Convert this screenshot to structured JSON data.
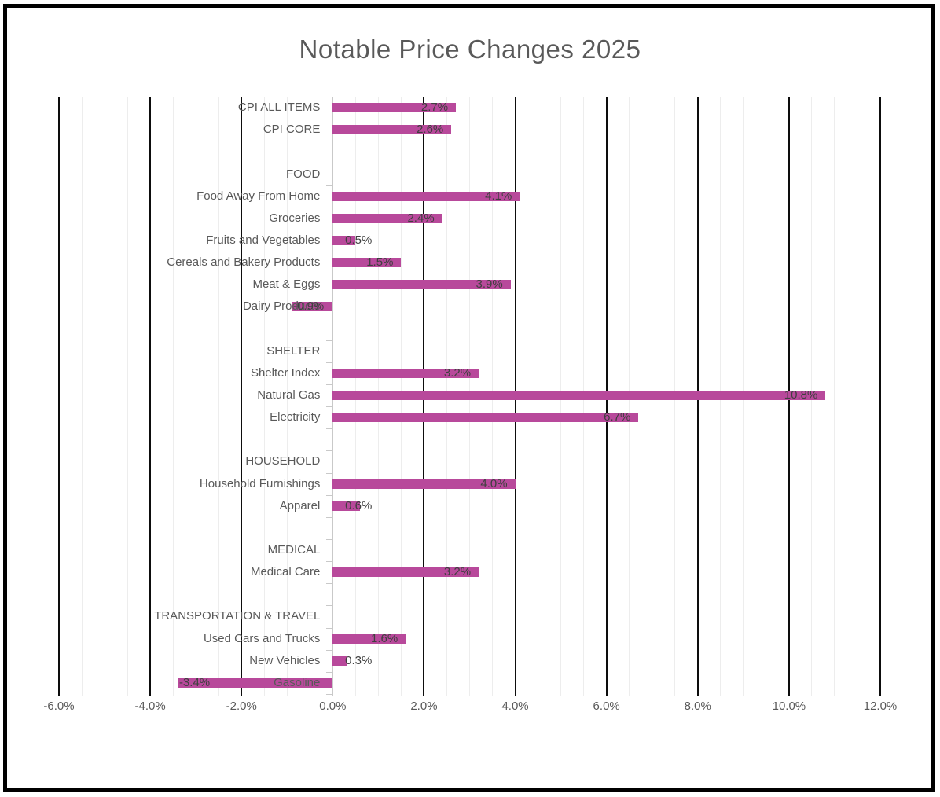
{
  "chart_data": {
    "type": "bar",
    "orientation": "horizontal",
    "title": "Notable Price Changes 2025",
    "xlabel": "",
    "ylabel": "",
    "xlim": [
      -6,
      12
    ],
    "x_major_step": 2,
    "x_minor_step": 0.5,
    "grid": "major-black-with-light-minor",
    "legend": "none",
    "x_tick_values": [
      -6,
      -4,
      -2,
      0,
      2,
      4,
      6,
      8,
      10,
      12
    ],
    "x_tick_labels": [
      "-6.0%",
      "-4.0%",
      "-2.0%",
      "0.0%",
      "2.0%",
      "4.0%",
      "6.0%",
      "8.0%",
      "10.0%",
      "12.0%"
    ],
    "categories": [
      "CPI ALL ITEMS",
      "CPI CORE",
      "",
      "FOOD",
      "Food Away From Home",
      "Groceries",
      "Fruits and Vegetables",
      "Cereals and Bakery Products",
      "Meat & Eggs",
      "Dairy Products",
      "",
      "SHELTER",
      "Shelter Index",
      "Natural Gas",
      "Electricity",
      "",
      "HOUSEHOLD",
      "Household Furnishings",
      "Apparel",
      "",
      "MEDICAL",
      "Medical Care",
      "",
      "TRANSPORTATION & TRAVEL",
      "Used Cars and Trucks",
      "New Vehicles",
      "Gasoline"
    ],
    "values": [
      2.7,
      2.6,
      null,
      null,
      4.1,
      2.4,
      0.5,
      1.5,
      3.9,
      -0.9,
      null,
      null,
      3.2,
      10.8,
      6.7,
      null,
      null,
      4.0,
      0.6,
      null,
      null,
      3.2,
      null,
      null,
      1.6,
      0.3,
      -3.4
    ],
    "data_labels": [
      "2.7%",
      "2.6%",
      null,
      null,
      "4.1%",
      "2.4%",
      "0.5%",
      "1.5%",
      "3.9%",
      "-0.9%",
      null,
      null,
      "3.2%",
      "10.8%",
      "6.7%",
      null,
      null,
      "4.0%",
      "0.6%",
      null,
      null,
      "3.2%",
      null,
      null,
      "1.6%",
      "0.3%",
      "-3.4%"
    ],
    "colors": {
      "bar": "#b8499b",
      "title_text": "#595959",
      "category_text": "#595959",
      "data_label_text": "#3f3f3f",
      "major_gridline": "#0d0d0d",
      "minor_gridline": "#ededed",
      "category_axis": "#c9c9c9",
      "chart_border": "#000000",
      "background": "#ffffff"
    }
  }
}
